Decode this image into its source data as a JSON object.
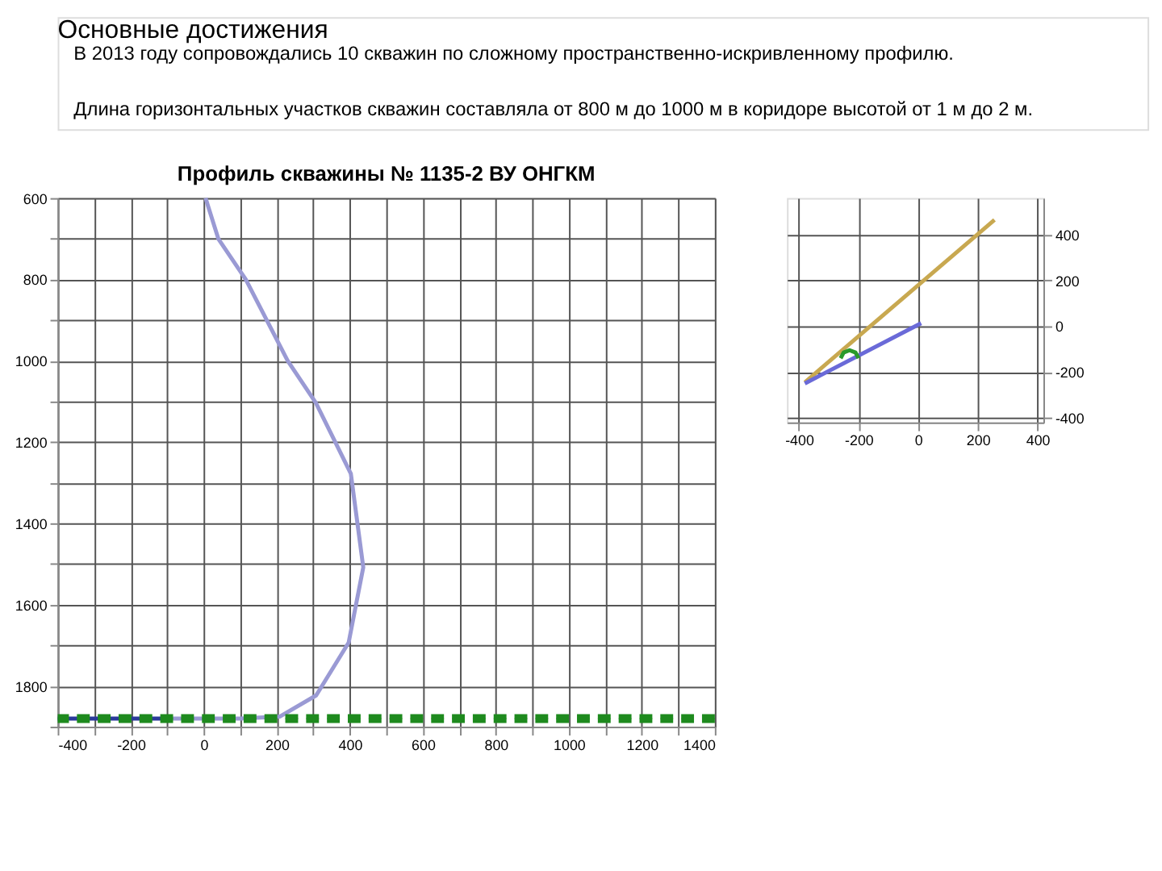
{
  "chart_data": [
    {
      "type": "other",
      "title": "Основные достижения",
      "annotations": [
        "В 2013 году сопровождались 10 скважин по сложному пространственно-искривленному профилю.",
        "Длина горизонтальных участков скважин составляла от 800 м до 1000 м в коридоре высотой от 1 м до 2 м."
      ]
    },
    {
      "type": "line",
      "title": "Профиль скважины № 1135-2 ВУ ОНГКМ",
      "xlim": [
        -400,
        1400
      ],
      "ylim": [
        1900,
        600
      ],
      "xticks": [
        -400,
        {
          "value": -300,
          "label": null
        },
        -200,
        {
          "value": -100,
          "label": null
        },
        0,
        {
          "value": 100,
          "label": null
        },
        200,
        {
          "value": 300,
          "label": null
        },
        400,
        {
          "value": 500,
          "label": null
        },
        600,
        {
          "value": 700,
          "label": null
        },
        800,
        {
          "value": 900,
          "label": null
        },
        1000,
        {
          "value": 1100,
          "label": null
        },
        1200,
        {
          "value": 1300,
          "label": null
        },
        1400
      ],
      "yticks": [
        600,
        {
          "value": 700,
          "label": null
        },
        800,
        {
          "value": 900,
          "label": null
        },
        1000,
        {
          "value": 1100,
          "label": null
        },
        1200,
        {
          "value": 1300,
          "label": null
        },
        1400,
        {
          "value": 1500,
          "label": null
        },
        1600,
        {
          "value": 1700,
          "label": null
        },
        1800,
        {
          "value": 1900,
          "label": null
        }
      ],
      "grid": true,
      "legend": false,
      "marker": "none",
      "series": [
        {
          "color": "#9a9ad4",
          "x": [
            5,
            40,
            115,
            230,
            308,
            403,
            437,
            397,
            308,
            209,
            100,
            0,
            -100
          ],
          "values": [
            600,
            700,
            800,
            1000,
            1105,
            1278,
            1508,
            1693,
            1823,
            1875,
            1880,
            1880,
            1880
          ]
        },
        {
          "color": "#2a3a9a",
          "x": [
            -100,
            -400
          ],
          "values": [
            1880,
            1880
          ]
        }
      ],
      "ref_lines": [
        {
          "axis": "y",
          "value": 1875,
          "color": "#1e8a1e",
          "line_style": "dashed"
        },
        {
          "axis": "y",
          "value": 1885,
          "color": "#1e8a1e",
          "line_style": "dashed"
        }
      ]
    },
    {
      "type": "line",
      "xlim": [
        -440,
        420
      ],
      "ylim": [
        -420,
        560
      ],
      "xticks": [
        -400,
        -200,
        0,
        200,
        400
      ],
      "yticks": [
        -400,
        -200,
        0,
        200,
        400
      ],
      "grid": true,
      "legend": false,
      "marker": "none",
      "series": [
        {
          "color": "#c8a850",
          "x": [
            -380,
            256
          ],
          "values": [
            -245,
            465
          ]
        },
        {
          "color": "#6a6ad8",
          "x": [
            -380,
            10
          ],
          "values": [
            -250,
            13
          ]
        },
        {
          "color": "#2a9a2a",
          "x": [
            -260,
            -250,
            -230,
            -210,
            -200
          ],
          "values": [
            -140,
            -115,
            -105,
            -115,
            -140
          ]
        }
      ]
    }
  ]
}
